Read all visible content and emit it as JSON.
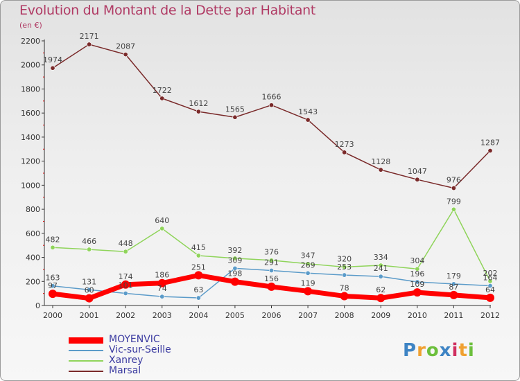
{
  "title": "Evolution du Montant de la Dette par Habitant",
  "unit": "(en €)",
  "logo": [
    "P",
    "r",
    "o",
    "x",
    "i",
    "t",
    "i"
  ],
  "logo_colors": [
    "#3e84c4",
    "#f0a030",
    "#6cbf3c",
    "#3e84c4",
    "#d03060",
    "#f0a030",
    "#6cbf3c"
  ],
  "chart_data": {
    "type": "line",
    "title": "Evolution du Montant de la Dette par Habitant",
    "ylabel": "(en €)",
    "xlabel": "",
    "ylim": [
      0,
      2200
    ],
    "y_ticks": [
      "0",
      "200",
      "400",
      "600",
      "800",
      "1000",
      "1200",
      "1400",
      "1600",
      "1800",
      "2000",
      "2200"
    ],
    "categories": [
      "2000",
      "2001",
      "2002",
      "2003",
      "2004",
      "2005",
      "2006",
      "2007",
      "2008",
      "2009",
      "2010",
      "2011",
      "2012"
    ],
    "grid": false,
    "legend_position": "bottom-left",
    "series": [
      {
        "name": "MOYENVIC",
        "color": "#ff0000",
        "width": 7,
        "values": [
          97,
          60,
          174,
          186,
          251,
          198,
          156,
          119,
          78,
          62,
          109,
          87,
          64
        ],
        "labels": [
          "97",
          "60",
          "174",
          "186",
          "251",
          "198",
          "156",
          "119",
          "78",
          "62",
          "109",
          "87",
          "64"
        ]
      },
      {
        "name": "Vic-sur-Seille",
        "color": "#5b9bc9",
        "width": 1.5,
        "values": [
          163,
          131,
          101,
          74,
          63,
          309,
          291,
          269,
          253,
          241,
          196,
          179,
          164
        ],
        "labels": [
          "163",
          "131",
          "101",
          "74",
          "63",
          "309",
          "291",
          "269",
          "253",
          "241",
          "196",
          "179",
          "164"
        ]
      },
      {
        "name": "Xanrey",
        "color": "#8fd45a",
        "width": 1.5,
        "values": [
          482,
          466,
          448,
          640,
          415,
          392,
          376,
          347,
          320,
          334,
          304,
          799,
          202
        ],
        "labels": [
          "482",
          "466",
          "448",
          "640",
          "415",
          "392",
          "376",
          "347",
          "320",
          "334",
          "304",
          "799",
          "202"
        ]
      },
      {
        "name": "Marsal",
        "color": "#7a2a2a",
        "width": 1.5,
        "values": [
          1974,
          2171,
          2087,
          1722,
          1612,
          1565,
          1666,
          1543,
          1273,
          1128,
          1047,
          976,
          1287
        ],
        "labels": [
          "1974",
          "2171",
          "2087",
          "1722",
          "1612",
          "1565",
          "1666",
          "1543",
          "1273",
          "1128",
          "1047",
          "976",
          "1287"
        ]
      }
    ],
    "legend_label_colors": [
      "#3a3aa0",
      "#3a3aa0",
      "#3a3aa0",
      "#3a3aa0"
    ]
  }
}
